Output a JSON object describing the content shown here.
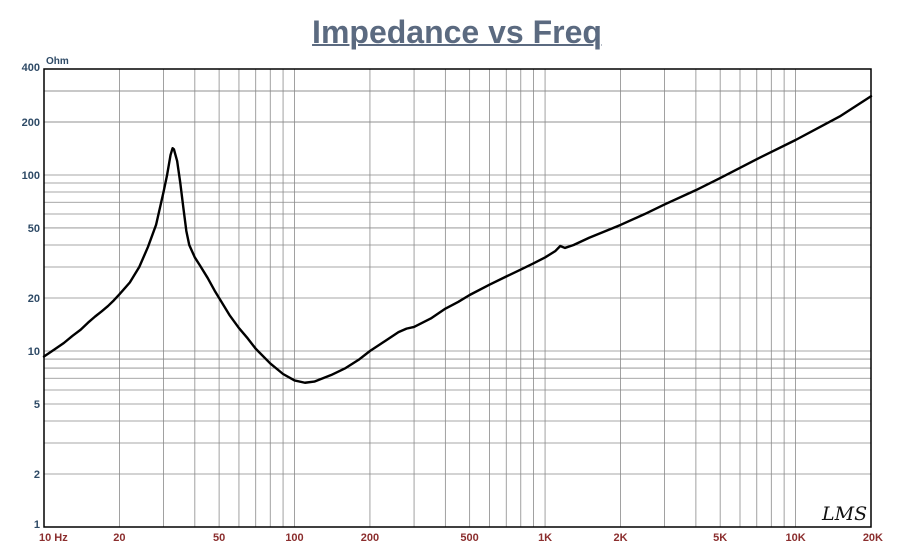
{
  "chart_data": {
    "type": "line",
    "title": "Impedance vs Freq",
    "ylabel": "Ohm",
    "xscale": "log",
    "yscale": "log",
    "xlim": [
      10,
      20000
    ],
    "ylim": [
      1,
      400
    ],
    "grid": true,
    "x_tick_labels": [
      {
        "x": 10,
        "label": "10  Hz"
      },
      {
        "x": 20,
        "label": "20"
      },
      {
        "x": 50,
        "label": "50"
      },
      {
        "x": 100,
        "label": "100"
      },
      {
        "x": 200,
        "label": "200"
      },
      {
        "x": 500,
        "label": "500"
      },
      {
        "x": 1000,
        "label": "1K"
      },
      {
        "x": 2000,
        "label": "2K"
      },
      {
        "x": 5000,
        "label": "5K"
      },
      {
        "x": 10000,
        "label": "10K"
      },
      {
        "x": 20000,
        "label": "20K"
      }
    ],
    "y_tick_labels": [
      {
        "y": 1,
        "label": "1"
      },
      {
        "y": 2,
        "label": "2"
      },
      {
        "y": 5,
        "label": "5"
      },
      {
        "y": 10,
        "label": "10"
      },
      {
        "y": 20,
        "label": "20"
      },
      {
        "y": 50,
        "label": "50"
      },
      {
        "y": 100,
        "label": "100"
      },
      {
        "y": 200,
        "label": "200"
      },
      {
        "y": 400,
        "label": "400"
      }
    ],
    "series": [
      {
        "color": "#000000",
        "x": [
          10,
          11,
          12,
          13,
          14,
          15,
          16,
          17,
          18,
          19,
          20,
          22,
          24,
          26,
          28,
          30,
          31,
          32,
          32.6,
          33,
          34,
          35,
          36,
          37,
          38,
          40,
          42,
          45,
          48,
          50,
          55,
          60,
          65,
          70,
          80,
          90,
          100,
          110,
          120,
          140,
          160,
          180,
          200,
          230,
          260,
          280,
          300,
          350,
          400,
          450,
          500,
          600,
          700,
          800,
          900,
          1000,
          1100,
          1150,
          1200,
          1300,
          1500,
          2000,
          2500,
          3000,
          4000,
          5000,
          7000,
          10000,
          15000,
          20000
        ],
        "y": [
          9.3,
          10.2,
          11.1,
          12.2,
          13.2,
          14.5,
          15.7,
          16.8,
          18.0,
          19.4,
          21.0,
          24.5,
          30.0,
          39.0,
          52.0,
          80.0,
          100.0,
          130.0,
          142.0,
          140.0,
          120.0,
          90.0,
          65.0,
          48.0,
          40.0,
          34.0,
          30.5,
          26.0,
          22.0,
          20.0,
          16.0,
          13.5,
          11.8,
          10.3,
          8.5,
          7.4,
          6.8,
          6.6,
          6.7,
          7.3,
          8.0,
          8.9,
          10.0,
          11.4,
          12.8,
          13.4,
          13.7,
          15.3,
          17.4,
          19.0,
          20.8,
          23.8,
          26.5,
          29.0,
          31.5,
          34.0,
          37.0,
          39.5,
          38.5,
          40.0,
          44.0,
          52.0,
          60.0,
          68.0,
          82.0,
          96.0,
          123.0,
          158.0,
          215.0,
          280.0
        ]
      }
    ]
  },
  "logo_text": "LMS"
}
